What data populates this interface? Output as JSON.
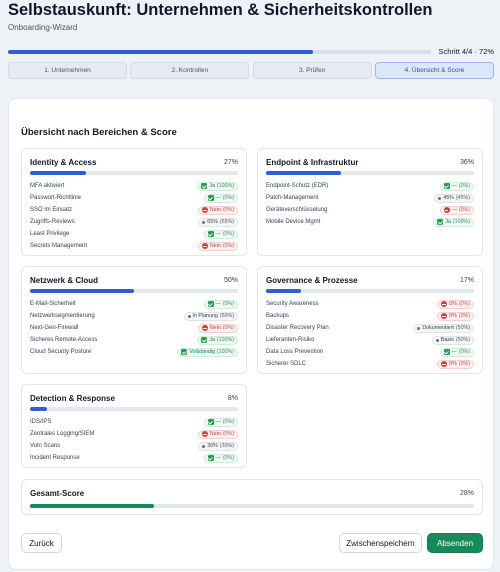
{
  "header": {
    "title": "Selbstauskunft: Unternehmen & Sicherheitskontrollen",
    "subtitle": "Onboarding-Wizard"
  },
  "progress": {
    "value": 0.72,
    "label": "Schritt 4/4 · 72%"
  },
  "steps": [
    {
      "label": "1. Unternehmen",
      "active": false
    },
    {
      "label": "2. Kontrollen",
      "active": false
    },
    {
      "label": "3. Prüfen",
      "active": false
    },
    {
      "label": "4. Übersicht & Score",
      "active": true
    }
  ],
  "section_title": "Übersicht nach Bereichen & Score",
  "panels": [
    {
      "name": "Identity & Access",
      "score_label": "27%",
      "score": 0.27,
      "items": [
        {
          "label": "MFA aktiviert",
          "status": "ok",
          "value": "Ja",
          "pct": "(100%)"
        },
        {
          "label": "Passwort-Richtlinie",
          "status": "ok",
          "value": "—",
          "pct": "(0%)"
        },
        {
          "label": "SSO im Einsatz",
          "status": "no",
          "value": "Nein",
          "pct": "(0%)"
        },
        {
          "label": "Zugriffs-Reviews",
          "status": "part",
          "value": "65%",
          "pct": "(65%)"
        },
        {
          "label": "Least Privilege",
          "status": "ok",
          "value": "—",
          "pct": "(0%)"
        },
        {
          "label": "Secrets Management",
          "status": "no",
          "value": "Nein",
          "pct": "(0%)"
        }
      ]
    },
    {
      "name": "Endpoint & Infrastruktur",
      "score_label": "36%",
      "score": 0.36,
      "items": [
        {
          "label": "Endpoint-Schutz (EDR)",
          "status": "ok",
          "value": "—",
          "pct": "(0%)"
        },
        {
          "label": "Patch-Management",
          "status": "part",
          "value": "45%",
          "pct": "(45%)"
        },
        {
          "label": "Geräteverschlüsselung",
          "status": "no",
          "value": "—",
          "pct": "(0%)"
        },
        {
          "label": "Mobile Device Mgmt",
          "status": "ok",
          "value": "Ja",
          "pct": "(100%)"
        }
      ]
    },
    {
      "name": "Netzwerk & Cloud",
      "score_label": "50%",
      "score": 0.5,
      "items": [
        {
          "label": "E-Mail-Sicherheit",
          "status": "ok",
          "value": "—",
          "pct": "(0%)"
        },
        {
          "label": "Netzwerksegmentierung",
          "status": "part",
          "value": "In Planung",
          "pct": "(50%)"
        },
        {
          "label": "Next-Gen-Firewall",
          "status": "no",
          "value": "Nein",
          "pct": "(0%)"
        },
        {
          "label": "Sicheres Remote-Access",
          "status": "ok",
          "value": "Ja",
          "pct": "(100%)"
        },
        {
          "label": "Cloud Security Posture",
          "status": "ok",
          "value": "Vollständig",
          "pct": "(100%)"
        }
      ]
    },
    {
      "name": "Governance & Prozesse",
      "score_label": "17%",
      "score": 0.17,
      "items": [
        {
          "label": "Security Awareness",
          "status": "no",
          "value": "0%",
          "pct": "(0%)"
        },
        {
          "label": "Backups",
          "status": "no",
          "value": "0%",
          "pct": "(0%)"
        },
        {
          "label": "Disaster Recovery Plan",
          "status": "part",
          "value": "Dokumentiert",
          "pct": "(50%)"
        },
        {
          "label": "Lieferanten-Risiko",
          "status": "part",
          "value": "Basis",
          "pct": "(50%)"
        },
        {
          "label": "Data Loss Prevention",
          "status": "ok",
          "value": "—",
          "pct": "(0%)"
        },
        {
          "label": "Sicherer SDLC",
          "status": "no",
          "value": "0%",
          "pct": "(0%)"
        }
      ]
    },
    {
      "name": "Detection & Response",
      "score_label": "8%",
      "score": 0.08,
      "items": [
        {
          "label": "IDS/IPS",
          "status": "ok",
          "value": "—",
          "pct": "(0%)"
        },
        {
          "label": "Zentrales Logging/SIEM",
          "status": "no",
          "value": "Nein",
          "pct": "(0%)"
        },
        {
          "label": "Vuln Scans",
          "status": "part",
          "value": "30%",
          "pct": "(30%)"
        },
        {
          "label": "Incident Response",
          "status": "ok",
          "value": "—",
          "pct": "(0%)"
        }
      ]
    }
  ],
  "total": {
    "name": "Gesamt-Score",
    "score_label": "28%",
    "score": 0.28
  },
  "buttons": {
    "back": "Zurück",
    "save": "Zwischenspeichern",
    "submit": "Absenden"
  },
  "colors": {
    "accent": "#2f5fd8",
    "success": "#178a5a",
    "danger": "#d93a2f"
  }
}
